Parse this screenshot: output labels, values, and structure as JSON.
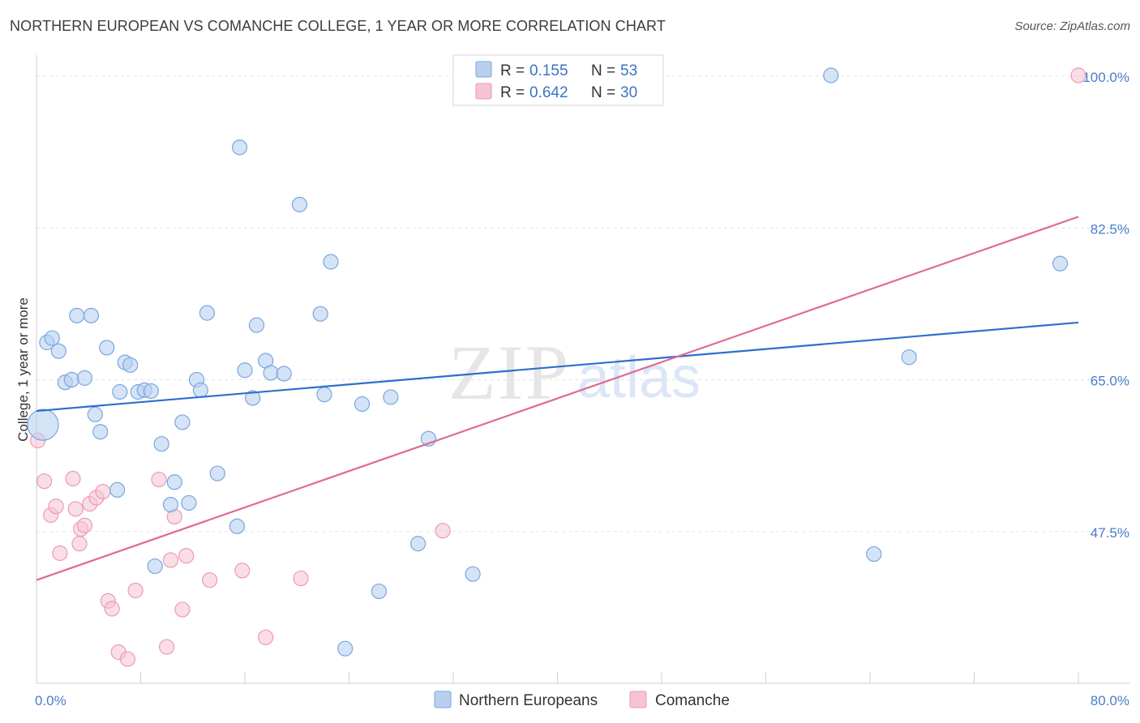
{
  "title": "NORTHERN EUROPEAN VS COMANCHE COLLEGE, 1 YEAR OR MORE CORRELATION CHART",
  "source": "Source: ZipAtlas.com",
  "watermark": {
    "zip": "ZIP",
    "atlas": "atlas"
  },
  "colors": {
    "blue_fill": "#b8d0f0",
    "blue_stroke": "#7aa6df",
    "blue_line": "#2d6fcc",
    "pink_fill": "#f6c3d2",
    "pink_stroke": "#ec9ab3",
    "pink_line": "#e06a94",
    "tick_text": "#4a7ec9"
  },
  "legend": {
    "rows": [
      {
        "r_label": "R =",
        "r_value": "0.155",
        "n_label": "N =",
        "n_value": "53"
      },
      {
        "r_label": "R =",
        "r_value": "0.642",
        "n_label": "N =",
        "n_value": "30"
      }
    ]
  },
  "bottom_legend": [
    "Northern Europeans",
    "Comanche"
  ],
  "chart_data": {
    "type": "scatter",
    "title": "NORTHERN EUROPEAN VS COMANCHE COLLEGE, 1 YEAR OR MORE CORRELATION CHART",
    "xlabel": "",
    "ylabel": "College, 1 year or more",
    "xlim": [
      0,
      80
    ],
    "ylim": [
      30,
      101.5
    ],
    "x_tick_labels": [
      "0.0%",
      "80.0%"
    ],
    "y_ticks": [
      47.5,
      65.0,
      82.5,
      100.0
    ],
    "y_tick_labels": [
      "47.5%",
      "65.0%",
      "82.5%",
      "100.0%"
    ],
    "grid": true,
    "legend_position": "top-center",
    "series": [
      {
        "name": "Northern Europeans",
        "r": 0.155,
        "n": 53,
        "trend": [
          [
            0,
            61.4
          ],
          [
            80,
            71.6
          ]
        ],
        "points": [
          [
            0.5,
            59.8
          ],
          [
            0.8,
            69.3
          ],
          [
            1.2,
            69.8
          ],
          [
            1.7,
            68.3
          ],
          [
            2.2,
            64.7
          ],
          [
            2.7,
            65.0
          ],
          [
            3.1,
            72.4
          ],
          [
            3.7,
            65.2
          ],
          [
            4.2,
            72.4
          ],
          [
            4.5,
            61.0
          ],
          [
            4.9,
            59.0
          ],
          [
            5.4,
            68.7
          ],
          [
            6.2,
            52.3
          ],
          [
            6.4,
            63.6
          ],
          [
            6.8,
            67.0
          ],
          [
            7.2,
            66.7
          ],
          [
            7.8,
            63.6
          ],
          [
            8.3,
            63.8
          ],
          [
            8.8,
            63.7
          ],
          [
            9.1,
            43.5
          ],
          [
            9.6,
            57.6
          ],
          [
            10.3,
            50.6
          ],
          [
            10.6,
            53.2
          ],
          [
            11.2,
            60.1
          ],
          [
            11.7,
            50.8
          ],
          [
            12.3,
            65.0
          ],
          [
            12.6,
            63.8
          ],
          [
            13.1,
            72.7
          ],
          [
            13.9,
            54.2
          ],
          [
            15.4,
            48.1
          ],
          [
            15.6,
            91.8
          ],
          [
            16.0,
            66.1
          ],
          [
            16.6,
            62.9
          ],
          [
            16.9,
            71.3
          ],
          [
            17.6,
            67.2
          ],
          [
            18.0,
            65.8
          ],
          [
            19.0,
            65.7
          ],
          [
            20.2,
            85.2
          ],
          [
            21.8,
            72.6
          ],
          [
            22.1,
            63.3
          ],
          [
            22.6,
            78.6
          ],
          [
            23.7,
            34.0
          ],
          [
            25.0,
            62.2
          ],
          [
            26.3,
            40.6
          ],
          [
            27.2,
            63.0
          ],
          [
            29.3,
            46.1
          ],
          [
            30.1,
            58.2
          ],
          [
            33.5,
            42.6
          ],
          [
            40.5,
            100.0
          ],
          [
            61.0,
            100.1
          ],
          [
            64.3,
            44.9
          ],
          [
            67.0,
            67.6
          ],
          [
            78.6,
            78.4
          ]
        ]
      },
      {
        "name": "Comanche",
        "r": 0.642,
        "n": 30,
        "trend": [
          [
            0,
            41.9
          ],
          [
            80,
            83.8
          ]
        ],
        "points": [
          [
            0.1,
            58.0
          ],
          [
            0.6,
            53.3
          ],
          [
            1.1,
            49.4
          ],
          [
            1.5,
            50.4
          ],
          [
            1.8,
            45.0
          ],
          [
            2.8,
            53.6
          ],
          [
            3.0,
            50.1
          ],
          [
            3.3,
            46.1
          ],
          [
            3.4,
            47.8
          ],
          [
            3.7,
            48.2
          ],
          [
            4.1,
            50.7
          ],
          [
            4.6,
            51.4
          ],
          [
            5.1,
            52.1
          ],
          [
            5.5,
            39.5
          ],
          [
            5.8,
            38.6
          ],
          [
            6.3,
            33.6
          ],
          [
            7.0,
            32.8
          ],
          [
            7.6,
            40.7
          ],
          [
            9.4,
            53.5
          ],
          [
            10.0,
            34.2
          ],
          [
            10.3,
            44.2
          ],
          [
            10.6,
            49.2
          ],
          [
            11.2,
            38.5
          ],
          [
            11.5,
            44.7
          ],
          [
            13.3,
            41.9
          ],
          [
            15.8,
            43.0
          ],
          [
            17.6,
            35.3
          ],
          [
            20.3,
            42.1
          ],
          [
            31.2,
            47.6
          ],
          [
            80.0,
            100.1
          ]
        ]
      }
    ]
  }
}
